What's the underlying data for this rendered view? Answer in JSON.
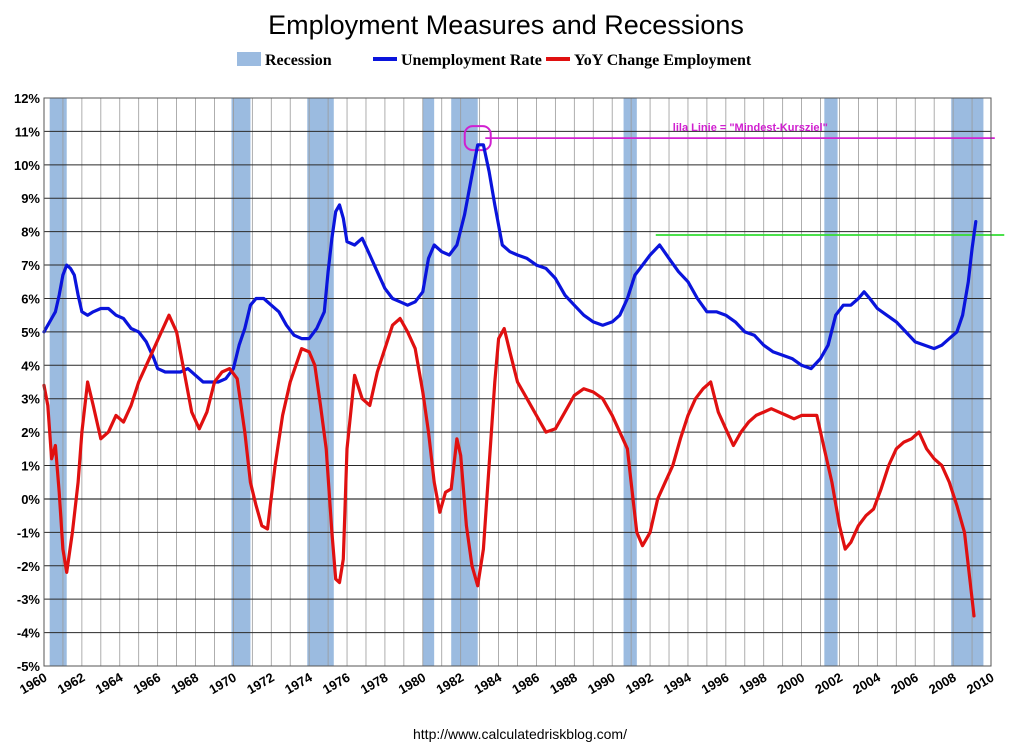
{
  "chart_data": {
    "type": "line",
    "title": "Employment Measures and Recessions",
    "xlabel": "",
    "ylabel": "",
    "xlim": [
      1960,
      2010
    ],
    "ylim": [
      -5,
      12
    ],
    "y_ticks": [
      12,
      11,
      10,
      9,
      8,
      7,
      6,
      5,
      4,
      3,
      2,
      1,
      0,
      -1,
      -2,
      -3,
      -4,
      -5
    ],
    "y_tick_labels": [
      "12%",
      "11%",
      "10%",
      "9%",
      "8%",
      "7%",
      "6%",
      "5%",
      "4%",
      "3%",
      "2%",
      "1%",
      "0%",
      "-1%",
      "-2%",
      "-3%",
      "-4%",
      "-5%"
    ],
    "x_tick_labels": [
      "1960",
      "1962",
      "1964",
      "1966",
      "1968",
      "1970",
      "1972",
      "1974",
      "1976",
      "1978",
      "1980",
      "1982",
      "1984",
      "1986",
      "1988",
      "1990",
      "1992",
      "1994",
      "1996",
      "1998",
      "2000",
      "2002",
      "2004",
      "2006",
      "2008",
      "2010"
    ],
    "grid": true,
    "legend": {
      "placement": "top",
      "items": [
        {
          "label": "Recession",
          "color": "#9bbbe0",
          "kind": "box"
        },
        {
          "label": "Unemployment Rate",
          "color": "#0a14dc",
          "kind": "line"
        },
        {
          "label": "YoY Change Employment",
          "color": "#e01010",
          "kind": "line"
        }
      ]
    },
    "recessions": [
      {
        "start": 1960.3,
        "end": 1961.2
      },
      {
        "start": 1969.9,
        "end": 1970.9
      },
      {
        "start": 1973.9,
        "end": 1975.3
      },
      {
        "start": 1980.0,
        "end": 1980.6
      },
      {
        "start": 1981.5,
        "end": 1982.9
      },
      {
        "start": 1990.6,
        "end": 1991.3
      },
      {
        "start": 2001.2,
        "end": 2001.9
      },
      {
        "start": 2007.9,
        "end": 2009.6
      }
    ],
    "series": [
      {
        "name": "Unemployment Rate",
        "color": "#0a14dc",
        "x": [
          1960.0,
          1960.2,
          1960.4,
          1960.6,
          1960.8,
          1961.0,
          1961.2,
          1961.4,
          1961.6,
          1961.8,
          1962.0,
          1962.3,
          1962.6,
          1963.0,
          1963.4,
          1963.8,
          1964.2,
          1964.6,
          1965.0,
          1965.4,
          1965.8,
          1966.0,
          1966.4,
          1966.8,
          1967.2,
          1967.6,
          1968.0,
          1968.4,
          1968.8,
          1969.2,
          1969.6,
          1970.0,
          1970.3,
          1970.6,
          1970.9,
          1971.2,
          1971.6,
          1972.0,
          1972.4,
          1972.8,
          1973.2,
          1973.6,
          1974.0,
          1974.4,
          1974.8,
          1975.0,
          1975.2,
          1975.4,
          1975.6,
          1975.8,
          1976.0,
          1976.4,
          1976.8,
          1977.2,
          1977.6,
          1978.0,
          1978.4,
          1978.8,
          1979.2,
          1979.6,
          1980.0,
          1980.3,
          1980.6,
          1981.0,
          1981.4,
          1981.8,
          1982.2,
          1982.6,
          1982.9,
          1983.2,
          1983.5,
          1983.8,
          1984.2,
          1984.6,
          1985.0,
          1985.5,
          1986.0,
          1986.5,
          1987.0,
          1987.5,
          1988.0,
          1988.5,
          1989.0,
          1989.5,
          1990.0,
          1990.4,
          1990.8,
          1991.2,
          1991.6,
          1992.0,
          1992.5,
          1993.0,
          1993.5,
          1994.0,
          1994.5,
          1995.0,
          1995.5,
          1996.0,
          1996.5,
          1997.0,
          1997.5,
          1998.0,
          1998.5,
          1999.0,
          1999.5,
          2000.0,
          2000.5,
          2001.0,
          2001.4,
          2001.8,
          2002.2,
          2002.6,
          2003.0,
          2003.3,
          2003.6,
          2004.0,
          2004.5,
          2005.0,
          2005.5,
          2006.0,
          2006.5,
          2007.0,
          2007.4,
          2007.8,
          2008.2,
          2008.5,
          2008.8,
          2009.0,
          2009.2
        ],
        "values": [
          5.0,
          5.2,
          5.4,
          5.6,
          6.1,
          6.7,
          7.0,
          6.9,
          6.7,
          6.1,
          5.6,
          5.5,
          5.6,
          5.7,
          5.7,
          5.5,
          5.4,
          5.1,
          5.0,
          4.7,
          4.2,
          3.9,
          3.8,
          3.8,
          3.8,
          3.9,
          3.7,
          3.5,
          3.5,
          3.5,
          3.6,
          3.9,
          4.6,
          5.1,
          5.8,
          6.0,
          6.0,
          5.8,
          5.6,
          5.2,
          4.9,
          4.8,
          4.8,
          5.1,
          5.6,
          6.8,
          7.8,
          8.6,
          8.8,
          8.4,
          7.7,
          7.6,
          7.8,
          7.3,
          6.8,
          6.3,
          6.0,
          5.9,
          5.8,
          5.9,
          6.2,
          7.2,
          7.6,
          7.4,
          7.3,
          7.6,
          8.5,
          9.7,
          10.6,
          10.6,
          9.8,
          8.8,
          7.6,
          7.4,
          7.3,
          7.2,
          7.0,
          6.9,
          6.6,
          6.1,
          5.8,
          5.5,
          5.3,
          5.2,
          5.3,
          5.5,
          6.0,
          6.7,
          7.0,
          7.3,
          7.6,
          7.2,
          6.8,
          6.5,
          6.0,
          5.6,
          5.6,
          5.5,
          5.3,
          5.0,
          4.9,
          4.6,
          4.4,
          4.3,
          4.2,
          4.0,
          3.9,
          4.2,
          4.6,
          5.5,
          5.8,
          5.8,
          6.0,
          6.2,
          6.0,
          5.7,
          5.5,
          5.3,
          5.0,
          4.7,
          4.6,
          4.5,
          4.6,
          4.8,
          5.0,
          5.5,
          6.5,
          7.5,
          8.3
        ]
      },
      {
        "name": "YoY Change Employment",
        "color": "#e01010",
        "x": [
          1960.0,
          1960.2,
          1960.4,
          1960.6,
          1960.8,
          1961.0,
          1961.2,
          1961.5,
          1961.8,
          1962.0,
          1962.3,
          1962.6,
          1963.0,
          1963.4,
          1963.8,
          1964.2,
          1964.6,
          1965.0,
          1965.4,
          1965.8,
          1966.2,
          1966.6,
          1967.0,
          1967.4,
          1967.8,
          1968.2,
          1968.6,
          1969.0,
          1969.4,
          1969.8,
          1970.2,
          1970.6,
          1970.9,
          1971.2,
          1971.5,
          1971.8,
          1972.2,
          1972.6,
          1973.0,
          1973.3,
          1973.6,
          1974.0,
          1974.3,
          1974.6,
          1974.9,
          1975.2,
          1975.4,
          1975.6,
          1975.8,
          1976.0,
          1976.4,
          1976.8,
          1977.2,
          1977.6,
          1978.0,
          1978.4,
          1978.8,
          1979.2,
          1979.6,
          1980.0,
          1980.3,
          1980.6,
          1980.9,
          1981.2,
          1981.5,
          1981.8,
          1982.0,
          1982.3,
          1982.6,
          1982.9,
          1983.2,
          1983.5,
          1983.8,
          1984.0,
          1984.3,
          1984.6,
          1985.0,
          1985.5,
          1986.0,
          1986.5,
          1987.0,
          1987.5,
          1988.0,
          1988.5,
          1989.0,
          1989.5,
          1990.0,
          1990.4,
          1990.8,
          1991.0,
          1991.3,
          1991.6,
          1992.0,
          1992.4,
          1992.8,
          1993.2,
          1993.6,
          1994.0,
          1994.4,
          1994.8,
          1995.2,
          1995.6,
          1996.0,
          1996.4,
          1996.8,
          1997.2,
          1997.6,
          1998.0,
          1998.4,
          1998.8,
          1999.2,
          1999.6,
          2000.0,
          2000.4,
          2000.8,
          2001.2,
          2001.6,
          2002.0,
          2002.3,
          2002.6,
          2003.0,
          2003.4,
          2003.8,
          2004.2,
          2004.6,
          2005.0,
          2005.4,
          2005.8,
          2006.2,
          2006.6,
          2007.0,
          2007.4,
          2007.8,
          2008.2,
          2008.6,
          2008.9,
          2009.1
        ],
        "values": [
          3.4,
          2.8,
          1.2,
          1.6,
          0.2,
          -1.5,
          -2.2,
          -1.0,
          0.5,
          2.0,
          3.5,
          2.8,
          1.8,
          2.0,
          2.5,
          2.3,
          2.8,
          3.5,
          4.0,
          4.5,
          5.0,
          5.5,
          5.0,
          3.8,
          2.6,
          2.1,
          2.6,
          3.5,
          3.8,
          3.9,
          3.6,
          2.0,
          0.5,
          -0.2,
          -0.8,
          -0.9,
          1.0,
          2.5,
          3.5,
          4.0,
          4.5,
          4.4,
          4.0,
          2.8,
          1.5,
          -1.0,
          -2.4,
          -2.5,
          -1.8,
          1.5,
          3.7,
          3.0,
          2.8,
          3.8,
          4.5,
          5.2,
          5.4,
          5.0,
          4.5,
          3.2,
          2.0,
          0.5,
          -0.4,
          0.2,
          0.3,
          1.8,
          1.3,
          -0.8,
          -2.0,
          -2.6,
          -1.5,
          1.0,
          3.5,
          4.8,
          5.1,
          4.4,
          3.5,
          3.0,
          2.5,
          2.0,
          2.1,
          2.6,
          3.1,
          3.3,
          3.2,
          3.0,
          2.5,
          2.0,
          1.5,
          0.5,
          -1.0,
          -1.4,
          -1.0,
          0.0,
          0.5,
          1.0,
          1.8,
          2.5,
          3.0,
          3.3,
          3.5,
          2.6,
          2.1,
          1.6,
          2.0,
          2.3,
          2.5,
          2.6,
          2.7,
          2.6,
          2.5,
          2.4,
          2.5,
          2.5,
          2.5,
          1.5,
          0.5,
          -0.8,
          -1.5,
          -1.3,
          -0.8,
          -0.5,
          -0.3,
          0.3,
          1.0,
          1.5,
          1.7,
          1.8,
          2.0,
          1.5,
          1.2,
          1.0,
          0.5,
          -0.2,
          -1.0,
          -2.5,
          -3.5
        ]
      }
    ],
    "annotations": [
      {
        "text": "lila Linie = \"Mindest-Kursziel\"",
        "color": "#d020d0",
        "kind": "hline",
        "y": 10.8,
        "x_from": 1983.3,
        "x_to": 2010.2
      },
      {
        "text": "",
        "color": "#33dd33",
        "kind": "hline",
        "y": 7.9,
        "x_from": 1992.3,
        "x_to": 2010.7
      },
      {
        "text": "",
        "color": "#d020d0",
        "kind": "circle",
        "x": 1982.9,
        "y": 10.8
      }
    ],
    "source": "http://www.calculatedriskblog.com/"
  }
}
